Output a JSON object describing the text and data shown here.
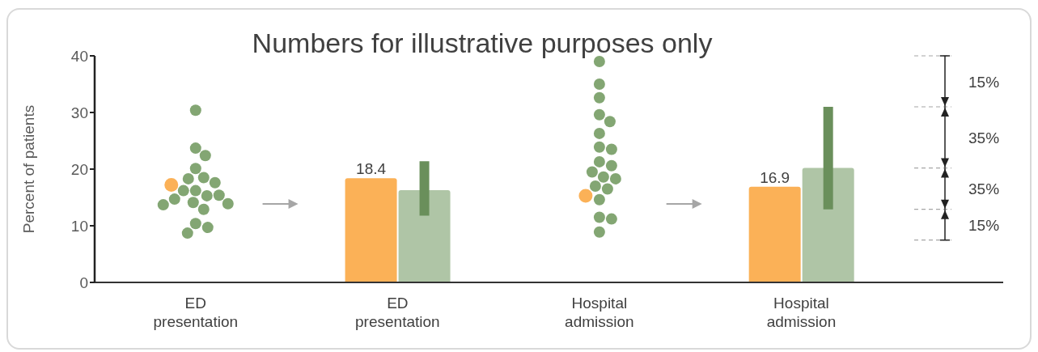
{
  "chart_data": {
    "type": "bar",
    "title": "Numbers for illustrative purposes only",
    "ylabel": "Percent of patients",
    "categories": [
      "ED presentation",
      "ED presentation",
      "Hospital admission",
      "Hospital admission"
    ],
    "ylim": [
      0,
      40
    ],
    "yticks": [
      0,
      10,
      20,
      30,
      40
    ],
    "marker": "circle",
    "series": [
      {
        "type": "scatter",
        "color": "#83a673",
        "x": [
          "ED presentation",
          "ED presentation",
          "ED presentation",
          "ED presentation",
          "ED presentation",
          "ED presentation",
          "ED presentation",
          "ED presentation",
          "ED presentation",
          "ED presentation",
          "ED presentation",
          "ED presentation",
          "ED presentation",
          "ED presentation",
          "ED presentation",
          "ED presentation",
          "ED presentation",
          "ED presentation",
          "ED presentation",
          "Hospital admission",
          "Hospital admission",
          "Hospital admission",
          "Hospital admission",
          "Hospital admission",
          "Hospital admission",
          "Hospital admission",
          "Hospital admission",
          "Hospital admission",
          "Hospital admission",
          "Hospital admission",
          "Hospital admission",
          "Hospital admission",
          "Hospital admission",
          "Hospital admission",
          "Hospital admission",
          "Hospital admission",
          "Hospital admission",
          "Hospital admission"
        ],
        "values": [
          30.4,
          23.7,
          22.4,
          20.1,
          18.5,
          18.3,
          17.6,
          16.2,
          16.2,
          15.3,
          15.4,
          14.7,
          14.1,
          13.9,
          13.7,
          12.9,
          10.4,
          9.7,
          8.7,
          39.0,
          35.0,
          32.6,
          29.6,
          28.4,
          26.3,
          23.9,
          23.5,
          21.3,
          20.6,
          19.5,
          18.6,
          18.3,
          17.0,
          16.5,
          14.6,
          11.5,
          11.2,
          8.9
        ]
      },
      {
        "type": "scatter",
        "color": "#fbb157",
        "x": [
          "ED presentation",
          "Hospital admission"
        ],
        "values": [
          17.2,
          15.3
        ]
      },
      {
        "color": "#fbb157",
        "values": [
          null,
          18.4,
          null,
          16.9
        ],
        "value_labels": [
          null,
          "18.4",
          null,
          "16.9"
        ]
      },
      {
        "color": "#afc5a6",
        "values": [
          null,
          16.3,
          null,
          20.2
        ],
        "errors": [
          null,
          [
            11.8,
            21.4
          ],
          null,
          [
            12.9,
            31.0
          ]
        ]
      }
    ],
    "annotations": [
      "15%",
      "35%",
      "35%",
      "15%"
    ]
  }
}
